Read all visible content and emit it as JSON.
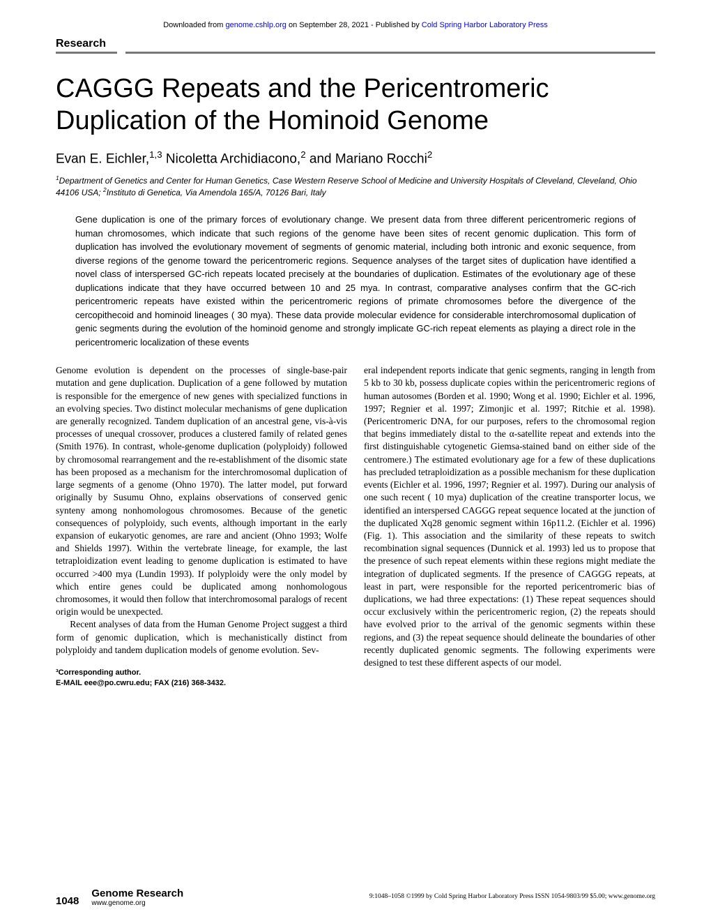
{
  "banner": {
    "prefix": "Downloaded from ",
    "link1": "genome.cshlp.org",
    "middle": " on September 28, 2021 - Published by ",
    "link2": "Cold Spring Harbor Laboratory Press"
  },
  "section_label": "Research",
  "title": "CAGGG Repeats and the Pericentromeric Duplication of the Hominoid Genome",
  "authors_html": "Evan E. Eichler,<sup>1,3</sup> Nicoletta Archidiacono,<sup>2</sup> and Mariano Rocchi<sup>2</sup>",
  "affiliations_html": "<sup>1</sup>Department of Genetics and Center for Human Genetics, Case Western Reserve School of Medicine and University Hospitals of Cleveland, Cleveland, Ohio 44106 USA; <sup>2</sup>Instituto di Genetica, Via Amendola 165/A, 70126 Bari, Italy",
  "abstract": "Gene duplication is one of the primary forces of evolutionary change. We present data from three different pericentromeric regions of human chromosomes, which indicate that such regions of the genome have been sites of recent genomic duplication. This form of duplication has involved the evolutionary movement of segments of genomic material, including both intronic and exonic sequence, from diverse regions of the genome toward the pericentromeric regions. Sequence analyses of the target sites of duplication have identified a novel class of interspersed GC-rich repeats located precisely at the boundaries of duplication. Estimates of the evolutionary age of these duplications indicate that they have occurred between 10 and 25 mya. In contrast, comparative analyses confirm that the GC-rich pericentromeric repeats have existed within the pericentromeric regions of primate chromosomes before the divergence of the cercopithecoid and hominoid lineages ( 30 mya). These data provide molecular evidence for considerable interchromosomal duplication of genic segments during the evolution of the hominoid genome and strongly implicate GC-rich repeat elements as playing a direct role in the pericentromeric localization of these events",
  "col1": {
    "p1": "Genome evolution is dependent on the processes of single-base-pair mutation and gene duplication. Duplication of a gene followed by mutation is responsible for the emergence of new genes with specialized functions in an evolving species. Two distinct molecular mechanisms of gene duplication are generally recognized. Tandem duplication of an ancestral gene, vis-à-vis processes of unequal crossover, produces a clustered family of related genes (Smith 1976). In contrast, whole-genome duplication (polyploidy) followed by chromosomal rearrangement and the re-establishment of the disomic state has been proposed as a mechanism for the interchromosomal duplication of large segments of a genome (Ohno 1970). The latter model, put forward originally by Susumu Ohno, explains observations of conserved genic synteny among nonhomologous chromosomes. Because of the genetic consequences of polyploidy, such events, although important in the early expansion of eukaryotic genomes, are rare and ancient (Ohno 1993; Wolfe and Shields 1997). Within the vertebrate lineage, for example, the last tetraploidization event leading to genome duplication is estimated to have occurred >400 mya (Lundin 1993). If polyploidy were the only model by which entire genes could be duplicated among nonhomologous chromosomes, it would then follow that interchromosomal paralogs of recent origin would be unexpected.",
    "p2": "Recent analyses of data from the Human Genome Project suggest a third form of genomic duplication, which is mechanistically distinct from polyploidy and tandem duplication models of genome evolution. Sev-"
  },
  "col2": {
    "p1": "eral independent reports indicate that genic segments, ranging in length from 5 kb to 30 kb, possess duplicate copies within the pericentromeric regions of human autosomes (Borden et al. 1990; Wong et al. 1990; Eichler et al. 1996, 1997; Regnier et al. 1997; Zimonjic et al. 1997; Ritchie et al. 1998). (Pericentromeric DNA, for our purposes, refers to the chromosomal region that begins immediately distal to the α-satellite repeat and extends into the first distinguishable cytogenetic Giemsa-stained band on either side of the centromere.) The estimated evolutionary age for a few of these duplications has precluded tetraploidization as a possible mechanism for these duplication events (Eichler et al. 1996, 1997; Regnier et al. 1997). During our analysis of one such recent ( 10 mya) duplication of the creatine transporter locus, we identified an interspersed CAGGG repeat sequence located at the junction of the duplicated Xq28 genomic segment within 16p11.2. (Eichler et al. 1996) (Fig. 1). This association and the similarity of these repeats to switch recombination signal sequences (Dunnick et al. 1993) led us to propose that the presence of such repeat elements within these regions might mediate the integration of duplicated segments. If the presence of CAGGG repeats, at least in part, were responsible for the reported pericentromeric bias of duplications, we had three expectations: (1) These repeat sequences should occur exclusively within the pericentromeric region, (2) the repeats should have evolved prior to the arrival of the genomic segments within these regions, and (3) the repeat sequence should delineate the boundaries of other recently duplicated genomic segments. The following experiments were designed to test these different aspects of our model."
  },
  "footnote": {
    "l1": "³Corresponding author.",
    "l2": "E-MAIL eee@po.cwru.edu; FAX (216) 368-3432."
  },
  "footer": {
    "page": "1048",
    "journal": "Genome Research",
    "url": "www.genome.org",
    "copyright": "9:1048–1058 ©1999 by Cold Spring Harbor Laboratory Press ISSN 1054-9803/99 $5.00; www.genome.org"
  }
}
